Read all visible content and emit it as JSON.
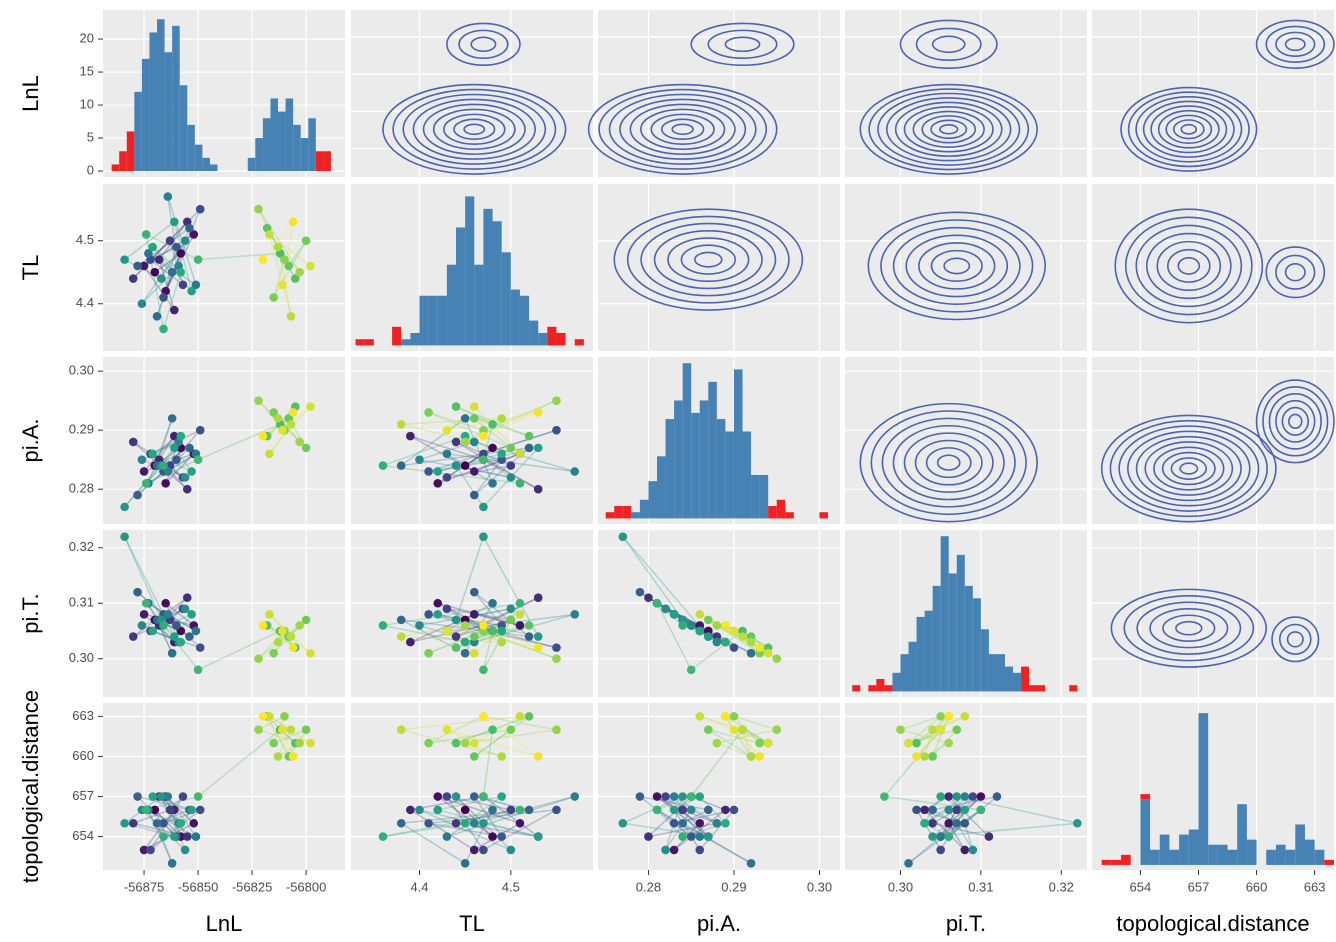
{
  "chart_data": {
    "type": "pairs",
    "grid": true,
    "color_scale": [
      "#440154",
      "#414487",
      "#2a788e",
      "#22a884",
      "#7ad151",
      "#fde725"
    ],
    "variables": [
      {
        "name": "LnL",
        "lim": [
          -56894,
          -56782
        ],
        "ticks": [
          -56875,
          -56850,
          -56825,
          -56800
        ],
        "values": [
          -56870,
          -56858,
          -56865,
          -56852,
          -56875,
          -56861,
          -56868,
          -56855,
          -56880,
          -56863,
          -56857,
          -56872,
          -56849,
          -56866,
          -56860,
          -56878,
          -56854,
          -56869,
          -56862,
          -56873,
          -56851,
          -56864,
          -56859,
          -56876,
          -56856,
          -56867,
          -56884,
          -56861,
          -56853,
          -56871,
          -56858,
          -56866,
          -56874,
          -56850,
          -56812,
          -56805,
          -56818,
          -56808,
          -56800,
          -56815,
          -56810,
          -56822,
          -56803,
          -56813,
          -56807,
          -56817,
          -56798,
          -56811,
          -56806,
          -56820
        ]
      },
      {
        "name": "TL",
        "lim": [
          4.325,
          4.59
        ],
        "ticks": [
          4.4,
          4.5
        ],
        "values": [
          4.45,
          4.48,
          4.42,
          4.51,
          4.46,
          4.39,
          4.47,
          4.53,
          4.44,
          4.5,
          4.43,
          4.47,
          4.55,
          4.41,
          4.49,
          4.46,
          4.52,
          4.38,
          4.45,
          4.48,
          4.43,
          4.57,
          4.46,
          4.4,
          4.5,
          4.44,
          4.47,
          4.53,
          4.42,
          4.49,
          4.45,
          4.36,
          4.51,
          4.47,
          4.48,
          4.44,
          4.52,
          4.46,
          4.5,
          4.41,
          4.47,
          4.55,
          4.45,
          4.49,
          4.38,
          4.51,
          4.46,
          4.43,
          4.53,
          4.47
        ]
      },
      {
        "name": "pi.A.",
        "lim": [
          0.2741,
          0.3024
        ],
        "ticks": [
          0.28,
          0.29,
          {
            "value": 0.3,
            "label": "0.30"
          }
        ],
        "values": [
          0.284,
          0.287,
          0.281,
          0.286,
          0.283,
          0.289,
          0.285,
          0.28,
          0.288,
          0.284,
          0.282,
          0.286,
          0.29,
          0.283,
          0.285,
          0.279,
          0.287,
          0.284,
          0.292,
          0.281,
          0.286,
          0.283,
          0.288,
          0.285,
          0.282,
          0.284,
          0.277,
          0.287,
          0.283,
          0.286,
          0.289,
          0.284,
          0.281,
          0.285,
          0.291,
          0.294,
          0.289,
          0.292,
          0.287,
          0.293,
          0.29,
          0.295,
          0.288,
          0.292,
          0.291,
          0.286,
          0.294,
          0.29,
          0.293,
          0.289
        ]
      },
      {
        "name": "pi.T.",
        "lim": [
          0.2931,
          0.3232
        ],
        "ticks": [
          {
            "value": 0.3,
            "label": "0.30"
          },
          0.31,
          0.32
        ],
        "values": [
          0.307,
          0.305,
          0.31,
          0.306,
          0.308,
          0.303,
          0.306,
          0.311,
          0.304,
          0.307,
          0.309,
          0.305,
          0.302,
          0.308,
          0.306,
          0.312,
          0.304,
          0.307,
          0.301,
          0.31,
          0.305,
          0.308,
          0.303,
          0.306,
          0.309,
          0.307,
          0.322,
          0.304,
          0.308,
          0.305,
          0.303,
          0.306,
          0.31,
          0.298,
          0.305,
          0.302,
          0.306,
          0.304,
          0.307,
          0.301,
          0.305,
          0.3,
          0.306,
          0.303,
          0.304,
          0.308,
          0.301,
          0.305,
          0.302,
          0.306
        ]
      },
      {
        "name": "topological.distance",
        "lim": [
          651.5,
          664
        ],
        "ticks": [
          654,
          657,
          660,
          663
        ],
        "values": [
          656,
          654,
          657,
          655,
          653,
          656,
          657,
          654,
          655,
          656,
          657,
          653,
          656,
          655,
          654,
          657,
          656,
          655,
          652,
          656,
          654,
          657,
          655,
          656,
          653,
          657,
          655,
          654,
          656,
          657,
          655,
          654,
          656,
          657,
          662,
          661,
          663,
          660,
          662,
          661,
          663,
          662,
          661,
          660,
          662,
          663,
          661,
          662,
          660,
          663
        ]
      }
    ],
    "diagonal": [
      {
        "type": "histogram",
        "ylim": [
          -0.9,
          24.4
        ],
        "yticks": [
          0,
          5,
          10,
          15,
          20
        ],
        "bins": [
          -56890,
          -56886.5,
          -56883,
          -56879.5,
          -56876,
          -56872.5,
          -56869,
          -56865.5,
          -56862,
          -56858.5,
          -56855,
          -56851.5,
          -56848,
          -56844.5,
          -56841,
          -56837.5,
          -56834,
          -56830.5,
          -56827,
          -56823.5,
          -56820,
          -56816.5,
          -56813,
          -56809.5,
          -56806,
          -56802.5,
          -56799,
          -56795.5,
          -56792,
          -56788.5
        ],
        "series": [
          {
            "color": "#4682b4",
            "values": [
              0,
              0,
              0,
              12,
              17,
              21,
              23,
              18,
              22,
              13,
              7,
              4,
              2,
              1,
              0,
              0,
              0,
              0,
              2,
              5,
              8,
              11,
              9,
              11,
              7,
              5,
              8,
              0,
              0
            ]
          },
          {
            "color": "#ee2222",
            "values": [
              1,
              3,
              6,
              0,
              0,
              0,
              0,
              0,
              0,
              0,
              0,
              0,
              0,
              0,
              0,
              0,
              0,
              0,
              0,
              0,
              0,
              0,
              0,
              0,
              0,
              0,
              0,
              3,
              3
            ]
          }
        ]
      },
      {
        "type": "histogram",
        "ylim": [
          -0.9,
          26
        ],
        "bins": [
          4.33,
          4.34,
          4.35,
          4.36,
          4.37,
          4.38,
          4.39,
          4.4,
          4.41,
          4.42,
          4.43,
          4.44,
          4.45,
          4.46,
          4.47,
          4.48,
          4.49,
          4.5,
          4.51,
          4.52,
          4.53,
          4.54,
          4.55,
          4.56,
          4.57,
          4.58
        ],
        "series": [
          {
            "color": "#4682b4",
            "values": [
              0,
              0,
              0,
              0,
              0,
              1,
              2,
              8,
              8,
              8,
              13,
              19,
              24,
              13,
              22,
              20,
              15,
              9,
              8,
              4,
              2,
              0,
              0,
              0,
              0
            ]
          },
          {
            "color": "#ee2222",
            "values": [
              1,
              1,
              0,
              0,
              3,
              0,
              0,
              0,
              0,
              0,
              0,
              0,
              0,
              0,
              0,
              0,
              0,
              0,
              0,
              0,
              0,
              3,
              2,
              0,
              1
            ]
          }
        ]
      },
      {
        "type": "histogram",
        "ylim": [
          -0.9,
          26
        ],
        "bins": [
          0.275,
          0.276,
          0.277,
          0.278,
          0.279,
          0.28,
          0.281,
          0.282,
          0.283,
          0.284,
          0.285,
          0.286,
          0.287,
          0.288,
          0.289,
          0.29,
          0.291,
          0.292,
          0.293,
          0.294,
          0.295,
          0.296,
          0.297,
          0.298,
          0.299,
          0.3,
          0.301
        ],
        "series": [
          {
            "color": "#4682b4",
            "values": [
              0,
              0,
              0,
              1,
              3,
              6,
              10,
              16,
              19,
              25,
              17,
              19,
              22,
              16,
              14,
              24,
              14,
              7,
              7,
              0,
              0,
              0,
              0,
              0,
              0,
              0
            ]
          },
          {
            "color": "#ee2222",
            "values": [
              1,
              2,
              2,
              0,
              0,
              0,
              0,
              0,
              0,
              0,
              0,
              0,
              0,
              0,
              0,
              0,
              0,
              0,
              0,
              2,
              3,
              1,
              0,
              0,
              0,
              1
            ]
          }
        ]
      },
      {
        "type": "histogram",
        "ylim": [
          -0.9,
          26
        ],
        "bins": [
          0.294,
          0.295,
          0.296,
          0.297,
          0.298,
          0.299,
          0.3,
          0.301,
          0.302,
          0.303,
          0.304,
          0.305,
          0.306,
          0.307,
          0.308,
          0.309,
          0.31,
          0.311,
          0.312,
          0.313,
          0.314,
          0.315,
          0.316,
          0.317,
          0.318,
          0.319,
          0.32,
          0.321,
          0.322,
          0.323
        ],
        "series": [
          {
            "color": "#4682b4",
            "values": [
              0,
              0,
              0,
              0,
              0,
              3,
              6,
              8,
              12,
              13,
              17,
              25,
              19,
              22,
              17,
              15,
              10,
              6,
              6,
              4,
              3,
              0,
              0,
              0,
              0,
              0,
              0,
              0,
              0
            ]
          },
          {
            "color": "#ee2222",
            "values": [
              1,
              0,
              1,
              2,
              1,
              0,
              0,
              0,
              0,
              0,
              0,
              0,
              0,
              0,
              0,
              0,
              0,
              0,
              0,
              0,
              0,
              4,
              1,
              1,
              0,
              0,
              0,
              1,
              0
            ]
          }
        ]
      },
      {
        "type": "histogram",
        "ylim": [
          -1,
          32
        ],
        "bins": [
          652,
          652.5,
          653,
          653.5,
          654,
          654.5,
          655,
          655.5,
          656,
          656.5,
          657,
          657.5,
          658,
          658.5,
          659,
          659.5,
          660,
          660.5,
          661,
          661.5,
          662,
          662.5,
          663,
          663.5,
          664
        ],
        "series": [
          {
            "color": "#4682b4",
            "values": [
              0,
              0,
              0,
              0,
              13,
              3,
              6,
              3,
              6,
              7,
              30,
              4,
              4,
              3,
              12,
              5,
              0,
              3,
              4,
              3,
              8,
              5,
              3,
              0
            ]
          },
          {
            "color": "#ee2222",
            "values": [
              1,
              1,
              2,
              0,
              1,
              0,
              0,
              0,
              0,
              0,
              0,
              0,
              0,
              0,
              0,
              0,
              0,
              0,
              0,
              0,
              0,
              0,
              0,
              1
            ]
          }
        ]
      }
    ],
    "upper": [
      {
        "type": "contour",
        "color": "#4c62b2",
        "peaks": [
          {
            "x": 4.46,
            "y": -56862,
            "rx": 0.1,
            "ry": 30,
            "levels": 9
          },
          {
            "x": 4.47,
            "y": -56805,
            "rx": 0.04,
            "ry": 14,
            "levels": 3
          }
        ]
      },
      {
        "type": "contour",
        "color": "#4c62b2",
        "peaks": [
          {
            "x": 0.284,
            "y": -56862,
            "rx": 0.011,
            "ry": 30,
            "levels": 9
          },
          {
            "x": 0.291,
            "y": -56805,
            "rx": 0.006,
            "ry": 14,
            "levels": 3
          }
        ]
      },
      {
        "type": "contour",
        "color": "#4c62b2",
        "peaks": [
          {
            "x": 0.306,
            "y": -56862,
            "rx": 0.011,
            "ry": 30,
            "levels": 10
          },
          {
            "x": 0.306,
            "y": -56805,
            "rx": 0.006,
            "ry": 16,
            "levels": 3
          }
        ]
      },
      {
        "type": "contour",
        "color": "#4c62b2",
        "peaks": [
          {
            "x": 656.5,
            "y": -56862,
            "rx": 3.5,
            "ry": 28,
            "levels": 9
          },
          {
            "x": 662,
            "y": -56805,
            "rx": 2,
            "ry": 16,
            "levels": 4
          }
        ]
      },
      {
        "type": "contour",
        "color": "#4c62b2",
        "peaks": [
          {
            "x": 0.287,
            "y": 4.47,
            "rx": 0.011,
            "ry": 0.08,
            "levels": 7
          }
        ]
      },
      {
        "type": "contour",
        "color": "#4c62b2",
        "peaks": [
          {
            "x": 0.307,
            "y": 4.46,
            "rx": 0.011,
            "ry": 0.085,
            "levels": 7
          }
        ]
      },
      {
        "type": "contour",
        "color": "#4c62b2",
        "peaks": [
          {
            "x": 656.5,
            "y": 4.46,
            "rx": 3.8,
            "ry": 0.09,
            "levels": 7
          },
          {
            "x": 662,
            "y": 4.45,
            "rx": 1.5,
            "ry": 0.04,
            "levels": 3
          }
        ]
      },
      {
        "type": "contour",
        "color": "#4c62b2",
        "peaks": [
          {
            "x": 0.306,
            "y": 0.2845,
            "rx": 0.011,
            "ry": 0.01,
            "levels": 8
          }
        ]
      },
      {
        "type": "contour",
        "color": "#4c62b2",
        "peaks": [
          {
            "x": 656.5,
            "y": 0.2835,
            "rx": 4.5,
            "ry": 0.009,
            "levels": 10
          },
          {
            "x": 662,
            "y": 0.2915,
            "rx": 2,
            "ry": 0.007,
            "levels": 6
          }
        ]
      },
      {
        "type": "contour",
        "color": "#4c62b2",
        "peaks": [
          {
            "x": 656.5,
            "y": 0.3055,
            "rx": 4,
            "ry": 0.007,
            "levels": 6
          },
          {
            "x": 662,
            "y": 0.3035,
            "rx": 1.2,
            "ry": 0.004,
            "levels": 3
          }
        ]
      }
    ],
    "lower": {
      "type": "scatter",
      "trace": true
    }
  }
}
